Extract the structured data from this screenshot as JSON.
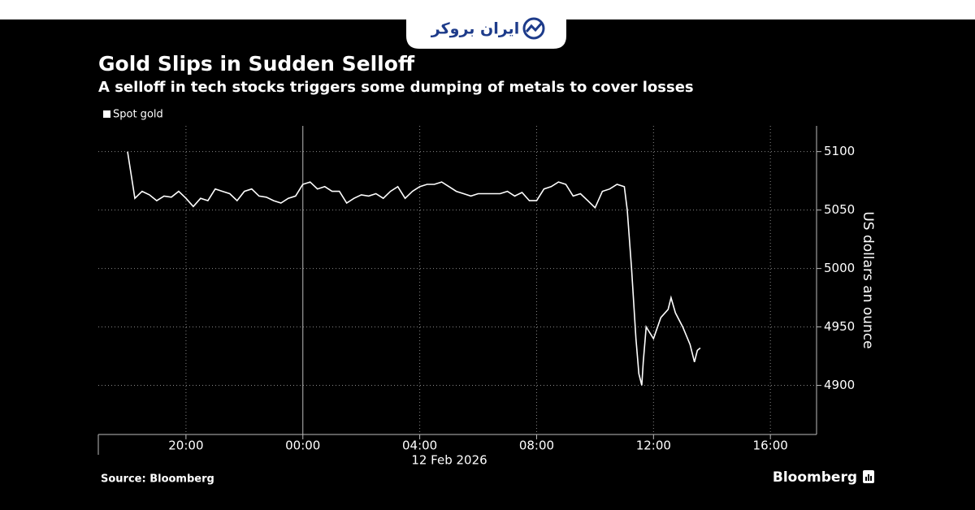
{
  "branding": {
    "logo": "ایران بروکر",
    "publisher": "Bloomberg"
  },
  "chart_data": {
    "type": "line",
    "title": "Gold Slips in Sudden Selloff",
    "subtitle": "A selloff in tech stocks triggers some dumping of metals to cover losses",
    "y_axis_label": "US dollars an ounce",
    "x_sublabel": "12 Feb 2026",
    "source": "Source: Bloomberg",
    "legend": "top-left",
    "grid": true,
    "xlim": [
      -7,
      17.58
    ],
    "xticks": [
      {
        "value": -4,
        "label": "20:00"
      },
      {
        "value": 0,
        "label": "00:00"
      },
      {
        "value": 4,
        "label": "04:00"
      },
      {
        "value": 8,
        "label": "08:00"
      },
      {
        "value": 12,
        "label": "12:00"
      },
      {
        "value": 16,
        "label": "16:00"
      }
    ],
    "ylim": [
      4858,
      5122
    ],
    "yticks": [
      4900,
      4950,
      5000,
      5050,
      5100
    ],
    "x": [
      -6,
      -5.75,
      -5.5,
      -5.25,
      -5,
      -4.75,
      -4.5,
      -4.25,
      -4,
      -3.75,
      -3.5,
      -3.25,
      -3,
      -2.75,
      -2.5,
      -2.25,
      -2,
      -1.75,
      -1.5,
      -1.25,
      -1,
      -0.75,
      -0.5,
      -0.25,
      0,
      0.25,
      0.5,
      0.75,
      1,
      1.25,
      1.5,
      1.75,
      2,
      2.25,
      2.5,
      2.75,
      3,
      3.25,
      3.5,
      3.75,
      4,
      4.25,
      4.5,
      4.75,
      5,
      5.25,
      5.5,
      5.75,
      6,
      6.25,
      6.5,
      6.75,
      7,
      7.25,
      7.5,
      7.75,
      8,
      8.25,
      8.5,
      8.75,
      9,
      9.25,
      9.5,
      9.75,
      10,
      10.25,
      10.5,
      10.75,
      11,
      11.1,
      11.25,
      11.4,
      11.5,
      11.6,
      11.65,
      11.75,
      12,
      12.25,
      12.5,
      12.6,
      12.75,
      13,
      13.25,
      13.4,
      13.5,
      13.6
    ],
    "series": [
      {
        "name": "Spot gold",
        "color": "#ffffff",
        "values": [
          5100,
          5060,
          5066,
          5063,
          5058,
          5062,
          5061,
          5066,
          5060,
          5053,
          5060,
          5058,
          5068,
          5066,
          5064,
          5058,
          5066,
          5068,
          5062,
          5061,
          5058,
          5056,
          5060,
          5062,
          5072,
          5074,
          5068,
          5070,
          5066,
          5066,
          5056,
          5060,
          5063,
          5062,
          5064,
          5060,
          5066,
          5070,
          5060,
          5066,
          5070,
          5072,
          5072,
          5074,
          5070,
          5066,
          5064,
          5062,
          5064,
          5064,
          5064,
          5064,
          5066,
          5062,
          5065,
          5058,
          5058,
          5068,
          5070,
          5074,
          5072,
          5062,
          5064,
          5058,
          5052,
          5066,
          5068,
          5072,
          5070,
          5050,
          5000,
          4940,
          4910,
          4900,
          4920,
          4950,
          4940,
          4958,
          4965,
          4975,
          4962,
          4950,
          4935,
          4920,
          4930,
          4932
        ]
      }
    ]
  }
}
